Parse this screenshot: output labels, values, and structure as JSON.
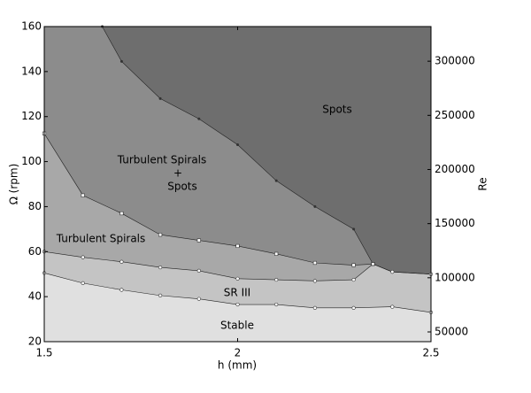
{
  "chart_data": {
    "type": "phase",
    "xlabel": "h (mm)",
    "ylabel": "Ω (rpm)",
    "y2label": "Re",
    "xlim": [
      1.5,
      2.5
    ],
    "xticks": [
      1.5,
      2,
      2.5
    ],
    "ylim": [
      20,
      160
    ],
    "yticks": [
      20,
      40,
      60,
      80,
      100,
      120,
      140,
      160
    ],
    "y2lim": [
      41000,
      332000
    ],
    "y2ticks": [
      50000,
      100000,
      150000,
      200000,
      250000,
      300000
    ],
    "regions": [
      {
        "label": [
          "Spots"
        ],
        "color": "#6e6e6e"
      },
      {
        "label": [
          "Turbulent Spirals",
          "+",
          "Spots"
        ],
        "color": "#8c8c8c"
      },
      {
        "label": [
          "Turbulent Spirals"
        ],
        "color": "#a8a8a8"
      },
      {
        "label": [
          "SR III"
        ],
        "color": "#c4c4c4"
      },
      {
        "label": [
          "Stable"
        ],
        "color": "#e0e0e0"
      }
    ],
    "boundaries": [
      {
        "x": [
          1.65,
          1.7,
          1.8,
          1.9,
          2.0,
          2.1,
          2.2,
          2.3,
          2.35,
          2.4,
          2.5
        ],
        "values": [
          160,
          144.5,
          128,
          119,
          107.5,
          91.5,
          80,
          70,
          54.5,
          51,
          50
        ]
      },
      {
        "x": [
          1.5,
          1.6,
          1.7,
          1.8,
          1.9,
          2.0,
          2.1,
          2.2,
          2.3,
          2.35
        ],
        "values": [
          112.5,
          85,
          77,
          67.5,
          65,
          62.5,
          59,
          55,
          54,
          54.5
        ]
      },
      {
        "x": [
          1.5,
          1.6,
          1.7,
          1.8,
          1.9,
          2.0,
          2.1,
          2.2,
          2.3,
          2.35,
          2.4,
          2.5
        ],
        "values": [
          60,
          57.5,
          55.5,
          53,
          51.5,
          48,
          47.5,
          47,
          47.5,
          54.5,
          51,
          50
        ]
      },
      {
        "x": [
          1.5,
          1.6,
          1.7,
          1.8,
          1.9,
          2.0,
          2.1,
          2.2,
          2.3,
          2.4,
          2.5
        ],
        "values": [
          50.5,
          46,
          43,
          40.5,
          39,
          36.5,
          36.5,
          35,
          35,
          35.5,
          33
        ]
      }
    ]
  }
}
